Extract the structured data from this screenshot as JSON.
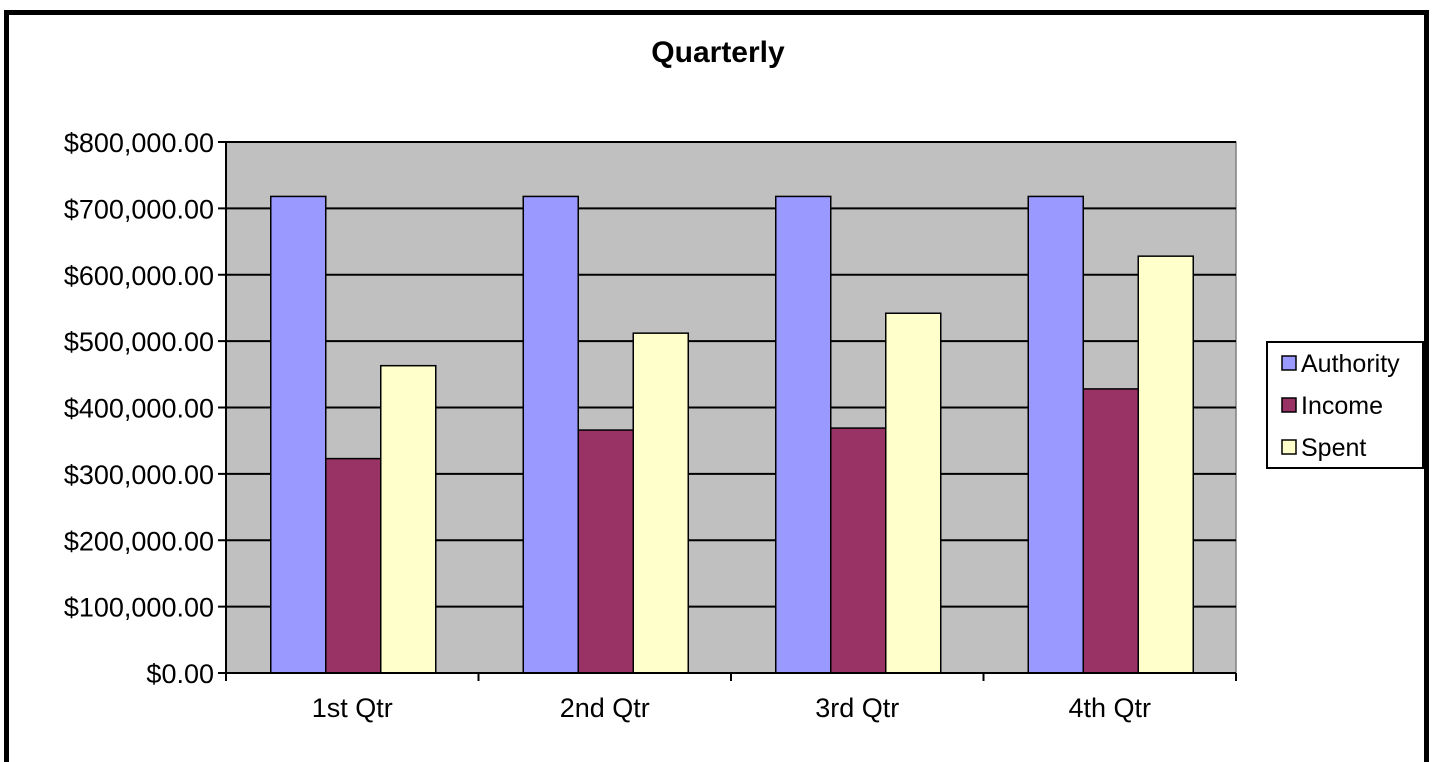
{
  "chart_data": {
    "type": "bar",
    "title": "Quarterly",
    "xlabel": "",
    "ylabel": "",
    "categories": [
      "1st Qtr",
      "2nd Qtr",
      "3rd Qtr",
      "4th Qtr"
    ],
    "series": [
      {
        "name": "Authority",
        "color": "#9999ff",
        "values": [
          718000,
          718000,
          718000,
          718000
        ]
      },
      {
        "name": "Income",
        "color": "#993366",
        "values": [
          323000,
          366000,
          369000,
          428000
        ]
      },
      {
        "name": "Spent",
        "color": "#ffffcc",
        "values": [
          463000,
          512000,
          542000,
          628000
        ]
      }
    ],
    "ylim": [
      0,
      800000
    ],
    "y_ticks": [
      "$0.00",
      "$100,000.00",
      "$200,000.00",
      "$300,000.00",
      "$400,000.00",
      "$500,000.00",
      "$600,000.00",
      "$700,000.00",
      "$800,000.00"
    ],
    "y_tick_values": [
      0,
      100000,
      200000,
      300000,
      400000,
      500000,
      600000,
      700000,
      800000
    ],
    "plot_background": "#c0c0c0",
    "grid": true,
    "legend_position": "right"
  }
}
